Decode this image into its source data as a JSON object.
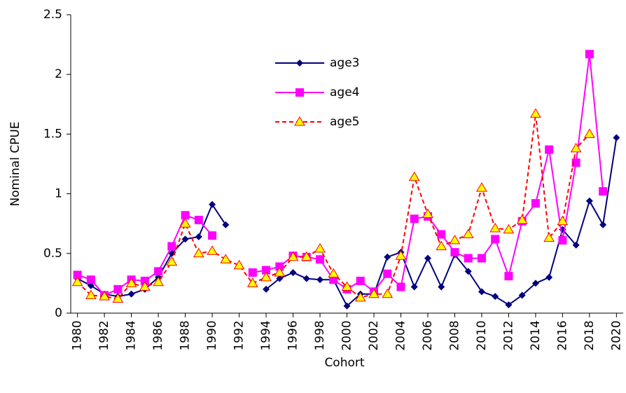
{
  "chart_data": {
    "type": "line",
    "xlabel": "Cohort",
    "ylabel": "Nominal CPUE",
    "x": [
      1980,
      1981,
      1982,
      1983,
      1984,
      1985,
      1986,
      1987,
      1988,
      1989,
      1990,
      1991,
      1992,
      1993,
      1994,
      1995,
      1996,
      1997,
      1998,
      1999,
      2000,
      2001,
      2002,
      2003,
      2004,
      2005,
      2006,
      2007,
      2008,
      2009,
      2010,
      2011,
      2012,
      2013,
      2014,
      2015,
      2016,
      2017,
      2018,
      2019,
      2020
    ],
    "series": [
      {
        "name": "age3",
        "color": "#000080",
        "marker": "diamond",
        "dash": false,
        "values": [
          0.29,
          0.23,
          0.16,
          0.14,
          0.16,
          0.2,
          0.3,
          0.5,
          0.62,
          0.64,
          0.91,
          0.74,
          null,
          null,
          0.2,
          0.29,
          0.34,
          0.29,
          0.28,
          0.28,
          0.06,
          0.16,
          0.16,
          0.47,
          0.51,
          0.22,
          0.46,
          0.22,
          0.49,
          0.35,
          0.18,
          0.14,
          0.07,
          0.15,
          0.25,
          0.3,
          0.7,
          0.57,
          0.94,
          0.74,
          1.47
        ]
      },
      {
        "name": "age4",
        "color": "#ff00ff",
        "marker": "square",
        "dash": false,
        "values": [
          0.32,
          0.28,
          0.15,
          0.2,
          0.28,
          0.27,
          0.35,
          0.56,
          0.82,
          0.78,
          0.65,
          null,
          null,
          0.34,
          0.36,
          0.39,
          0.48,
          0.47,
          0.45,
          0.28,
          0.2,
          0.27,
          0.18,
          0.33,
          0.22,
          0.79,
          0.81,
          0.66,
          0.51,
          0.46,
          0.46,
          0.62,
          0.31,
          0.77,
          0.92,
          1.37,
          0.61,
          1.26,
          2.17,
          1.02,
          null
        ]
      },
      {
        "name": "age5",
        "color": "#ff0000",
        "marker": "triangle",
        "dash": true,
        "values": [
          0.26,
          0.15,
          0.14,
          0.12,
          0.25,
          0.22,
          0.26,
          0.43,
          0.75,
          0.5,
          0.52,
          0.45,
          0.4,
          0.25,
          0.3,
          0.34,
          0.47,
          0.47,
          0.54,
          0.33,
          0.22,
          0.13,
          0.16,
          0.16,
          0.48,
          1.14,
          0.83,
          0.56,
          0.61,
          0.66,
          1.05,
          0.71,
          0.7,
          0.78,
          1.67,
          0.63,
          0.77,
          1.38,
          1.5,
          null,
          null
        ]
      }
    ],
    "xlim": [
      1979.5,
      2020.5
    ],
    "xticks": [
      1980,
      1982,
      1984,
      1986,
      1988,
      1990,
      1992,
      1994,
      1996,
      1998,
      2000,
      2002,
      2004,
      2006,
      2008,
      2010,
      2012,
      2014,
      2016,
      2018,
      2020
    ],
    "ylim": [
      0,
      2.5
    ],
    "yticks": [
      0,
      0.5,
      1,
      1.5,
      2,
      2.5
    ],
    "grid": false,
    "legend": "top"
  }
}
